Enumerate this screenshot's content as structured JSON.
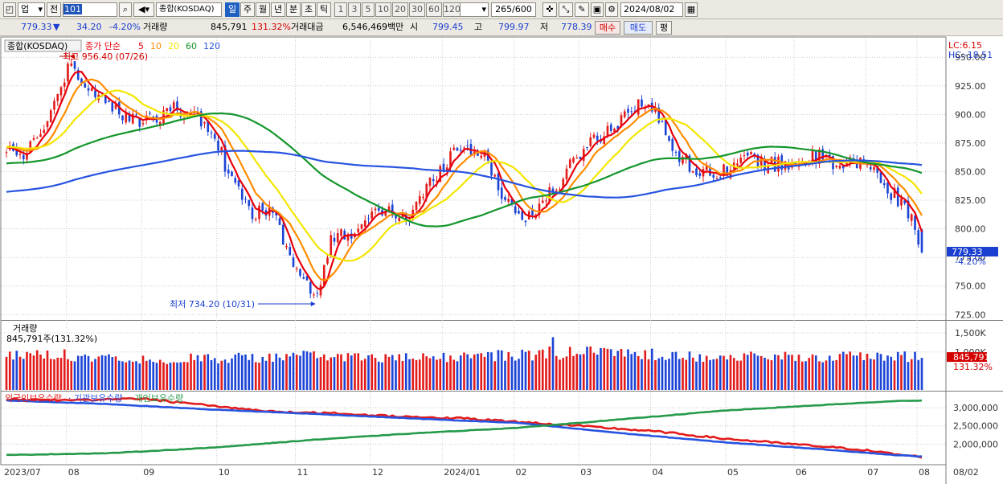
{
  "toolbar": {
    "market": "업",
    "prev_label": "전",
    "code": "101",
    "name": "종합(KOSDAQ)",
    "periods": [
      "일",
      "주",
      "월",
      "년",
      "분",
      "초",
      "틱"
    ],
    "active_period": "일",
    "intervals": [
      "1",
      "3",
      "5",
      "10",
      "20",
      "30",
      "60",
      "120"
    ],
    "count": "265",
    "count_total": "600",
    "date": "2024/08/02"
  },
  "quote": {
    "price": "779.33",
    "arrow": "▼",
    "change": "34.20",
    "change_pct": "-4.20%",
    "volume_label": "거래량",
    "volume": "845,791",
    "volume_ratio": "131.32%",
    "amount_label": "거래대금",
    "amount": "6,546,469백만",
    "open_label": "시",
    "open": "799.45",
    "high_label": "고",
    "high": "799.97",
    "low_label": "저",
    "low": "778.39",
    "buy_label": "매수",
    "sell_label": "매도",
    "eval_label": "평"
  },
  "price_panel": {
    "title": "종합(KOSDAQ)",
    "ma_label": "종가 단순",
    "ma_periods": [
      "5",
      "10",
      "20",
      "60",
      "120"
    ],
    "high_annotation": "최고 956.40 (07/26)",
    "low_annotation": "최저 734.20 (10/31)",
    "lc": "LC:6.15",
    "hc": "HC:-18.51",
    "current": "779.33",
    "current_pct": "-4.20%"
  },
  "volume_panel": {
    "title": "거래량",
    "info": "845,791주(131.32%)",
    "current": "845,791",
    "current_pct": "131.32%"
  },
  "holding_panel": {
    "labels": [
      "외국인보유수량",
      "기관보유수량",
      "개인보유수량"
    ]
  },
  "colors": {
    "up": "#e31b1b",
    "down": "#1c44d6",
    "ma5": "#e8000b",
    "ma10": "#ff8c00",
    "ma20": "#f2e600",
    "ma60": "#14962b",
    "ma120": "#2653e0",
    "foreign": "#e31b1b",
    "institution": "#2653e0",
    "individual": "#259a4a"
  },
  "chart_data": [
    {
      "type": "line",
      "title": "종합(KOSDAQ)",
      "yticks": [
        "725.00",
        "750.00",
        "775.00",
        "800.00",
        "825.00",
        "850.00",
        "875.00",
        "900.00",
        "925.00",
        "950.00"
      ],
      "ylim": [
        721,
        960
      ],
      "x_labels": [
        "2023/07",
        "08",
        "09",
        "10",
        "11",
        "12",
        "2024/01",
        "02",
        "03",
        "04",
        "05",
        "06",
        "07",
        "08",
        "08/02"
      ],
      "close_keypoints": [
        [
          0,
          872
        ],
        [
          5,
          865
        ],
        [
          12,
          893
        ],
        [
          18,
          940
        ],
        [
          25,
          925
        ],
        [
          30,
          905
        ],
        [
          40,
          893
        ],
        [
          50,
          905
        ],
        [
          60,
          890
        ],
        [
          66,
          840
        ],
        [
          72,
          815
        ],
        [
          78,
          815
        ],
        [
          84,
          770
        ],
        [
          91,
          738
        ],
        [
          95,
          790
        ],
        [
          101,
          798
        ],
        [
          110,
          815
        ],
        [
          118,
          810
        ],
        [
          125,
          845
        ],
        [
          132,
          872
        ],
        [
          139,
          868
        ],
        [
          145,
          832
        ],
        [
          151,
          808
        ],
        [
          156,
          820
        ],
        [
          162,
          840
        ],
        [
          169,
          872
        ],
        [
          177,
          888
        ],
        [
          185,
          912
        ],
        [
          190,
          900
        ],
        [
          196,
          868
        ],
        [
          203,
          848
        ],
        [
          210,
          852
        ],
        [
          217,
          862
        ],
        [
          224,
          856
        ],
        [
          231,
          858
        ],
        [
          238,
          863
        ],
        [
          243,
          853
        ],
        [
          251,
          860
        ],
        [
          258,
          835
        ],
        [
          263,
          820
        ],
        [
          266,
          804
        ],
        [
          268,
          779.33
        ]
      ],
      "ma_periods": [
        5,
        10,
        20,
        60,
        120
      ],
      "annotations": [
        {
          "text": "최고 956.40 (07/26)",
          "value": 956.4
        },
        {
          "text": "최저 734.20 (10/31)",
          "value": 734.2
        }
      ]
    },
    {
      "type": "bar",
      "title": "거래량",
      "yticks": [
        "1,500K",
        "1,000K"
      ],
      "ylim": [
        0,
        1800
      ],
      "unit": "K",
      "volume_keypoints": [
        [
          0,
          850
        ],
        [
          14,
          920
        ],
        [
          28,
          840
        ],
        [
          45,
          780
        ],
        [
          60,
          820
        ],
        [
          80,
          830
        ],
        [
          92,
          900
        ],
        [
          100,
          850
        ],
        [
          120,
          800
        ],
        [
          135,
          870
        ],
        [
          155,
          900
        ],
        [
          170,
          980
        ],
        [
          185,
          940
        ],
        [
          200,
          870
        ],
        [
          220,
          840
        ],
        [
          240,
          850
        ],
        [
          255,
          860
        ],
        [
          268,
          845.791
        ]
      ]
    },
    {
      "type": "line",
      "title": "외국인보유수량 / 기관보유수량 / 개인보유수량",
      "yticks": [
        "3,000,000",
        "2,500,000",
        "2,000,000"
      ],
      "ylim": [
        1500000,
        3400000
      ],
      "series": [
        {
          "name": "외국인보유수량",
          "keypoints": [
            [
              0,
              3230000
            ],
            [
              20,
              3200000
            ],
            [
              40,
              3250000
            ],
            [
              60,
              3050000
            ],
            [
              80,
              2880000
            ],
            [
              95,
              2850000
            ],
            [
              110,
              2780000
            ],
            [
              135,
              2700000
            ],
            [
              160,
              2550000
            ],
            [
              190,
              2350000
            ],
            [
              210,
              2150000
            ],
            [
              230,
              2000000
            ],
            [
              250,
              1850000
            ],
            [
              262,
              1700000
            ],
            [
              268,
              1650000
            ]
          ]
        },
        {
          "name": "기관보유수량",
          "keypoints": [
            [
              0,
              3200000
            ],
            [
              30,
              3100000
            ],
            [
              60,
              2950000
            ],
            [
              90,
              2830000
            ],
            [
              120,
              2700000
            ],
            [
              150,
              2580000
            ],
            [
              180,
              2300000
            ],
            [
              210,
              2050000
            ],
            [
              240,
              1850000
            ],
            [
              260,
              1700000
            ],
            [
              268,
              1660000
            ]
          ]
        },
        {
          "name": "개인보유수량",
          "keypoints": [
            [
              0,
              1700000
            ],
            [
              30,
              1750000
            ],
            [
              60,
              1900000
            ],
            [
              90,
              2120000
            ],
            [
              120,
              2300000
            ],
            [
              150,
              2450000
            ],
            [
              180,
              2680000
            ],
            [
              210,
              2920000
            ],
            [
              240,
              3080000
            ],
            [
              260,
              3180000
            ],
            [
              268,
              3200000
            ]
          ]
        }
      ]
    }
  ]
}
